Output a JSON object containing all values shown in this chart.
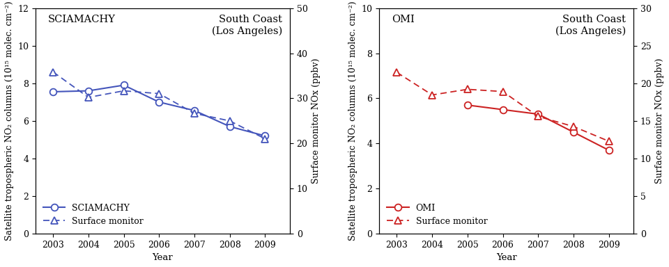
{
  "sciamachy": {
    "years": [
      2003,
      2004,
      2005,
      2006,
      2007,
      2008,
      2009
    ],
    "satellite": [
      7.55,
      7.6,
      7.9,
      7.0,
      6.55,
      5.7,
      5.2
    ],
    "surface": [
      8.6,
      7.25,
      7.6,
      7.45,
      6.4,
      6.0,
      5.05
    ],
    "title_instrument": "SCIAMACHY",
    "title_location": "South Coast\n(Los Angeles)",
    "legend_sat": "SCIAMACHY",
    "legend_surf": "Surface monitor",
    "ylabel_left": "Satellite tropospheric NO₂ columns (10¹⁵ molec. cm⁻²)",
    "ylabel_right": "Surface monitor NOx (ppbv)",
    "ylim_left": [
      0,
      12
    ],
    "ylim_right": [
      0,
      50
    ],
    "yticks_left": [
      0,
      2,
      4,
      6,
      8,
      10,
      12
    ],
    "yticks_right": [
      0,
      10,
      20,
      30,
      40,
      50
    ],
    "color": "#4455bb"
  },
  "omi": {
    "years": [
      2003,
      2004,
      2005,
      2006,
      2007,
      2008,
      2009
    ],
    "satellite": [
      null,
      null,
      5.7,
      5.5,
      5.3,
      4.5,
      3.7
    ],
    "surface": [
      7.15,
      6.15,
      6.4,
      6.3,
      5.2,
      4.75,
      4.1
    ],
    "title_instrument": "OMI",
    "title_location": "South Coast\n(Los Angeles)",
    "legend_sat": "OMI",
    "legend_surf": "Surface monitor",
    "ylabel_left": "Satellite tropospheric NO₂ columns (10¹⁵ molec. cm⁻²)",
    "ylabel_right": "Surface monitor NOx (ppbv)",
    "ylim_left": [
      0,
      10
    ],
    "ylim_right": [
      0,
      30
    ],
    "yticks_left": [
      0,
      2,
      4,
      6,
      8,
      10
    ],
    "yticks_right": [
      0,
      5,
      10,
      15,
      20,
      25,
      30
    ],
    "color": "#cc2222"
  },
  "xlabel": "Year",
  "background_color": "#ffffff",
  "font_size": 9.5
}
